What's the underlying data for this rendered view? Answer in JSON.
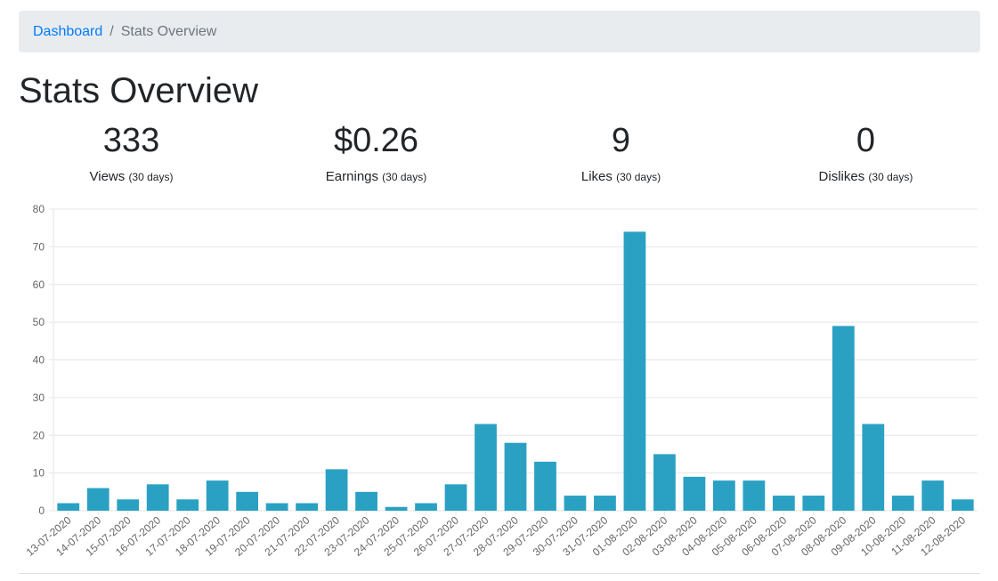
{
  "breadcrumb": {
    "link": "Dashboard",
    "separator": "/",
    "current": "Stats Overview"
  },
  "page": {
    "title": "Stats Overview"
  },
  "stats": [
    {
      "value": "333",
      "label": "Views",
      "period": "(30 days)"
    },
    {
      "value": "$0.26",
      "label": "Earnings",
      "period": "(30 days)"
    },
    {
      "value": "9",
      "label": "Likes",
      "period": "(30 days)"
    },
    {
      "value": "0",
      "label": "Dislikes",
      "period": "(30 days)"
    }
  ],
  "colors": {
    "bar": "#2aa1c3",
    "grid": "#e6e6e6",
    "link": "#007bff"
  },
  "chart_data": {
    "type": "bar",
    "categories": [
      "13-07-2020",
      "14-07-2020",
      "15-07-2020",
      "16-07-2020",
      "17-07-2020",
      "18-07-2020",
      "19-07-2020",
      "20-07-2020",
      "21-07-2020",
      "22-07-2020",
      "23-07-2020",
      "24-07-2020",
      "25-07-2020",
      "26-07-2020",
      "27-07-2020",
      "28-07-2020",
      "29-07-2020",
      "30-07-2020",
      "31-07-2020",
      "01-08-2020",
      "02-08-2020",
      "03-08-2020",
      "04-08-2020",
      "05-08-2020",
      "06-08-2020",
      "07-08-2020",
      "08-08-2020",
      "09-08-2020",
      "10-08-2020",
      "11-08-2020",
      "12-08-2020"
    ],
    "values": [
      2,
      6,
      3,
      7,
      3,
      8,
      5,
      2,
      2,
      11,
      5,
      1,
      2,
      7,
      23,
      18,
      13,
      4,
      4,
      74,
      15,
      9,
      8,
      8,
      4,
      4,
      49,
      23,
      4,
      8,
      3
    ],
    "ylim": [
      0,
      80
    ],
    "yticks": [
      0,
      10,
      20,
      30,
      40,
      50,
      60,
      70,
      80
    ],
    "grid": true
  }
}
